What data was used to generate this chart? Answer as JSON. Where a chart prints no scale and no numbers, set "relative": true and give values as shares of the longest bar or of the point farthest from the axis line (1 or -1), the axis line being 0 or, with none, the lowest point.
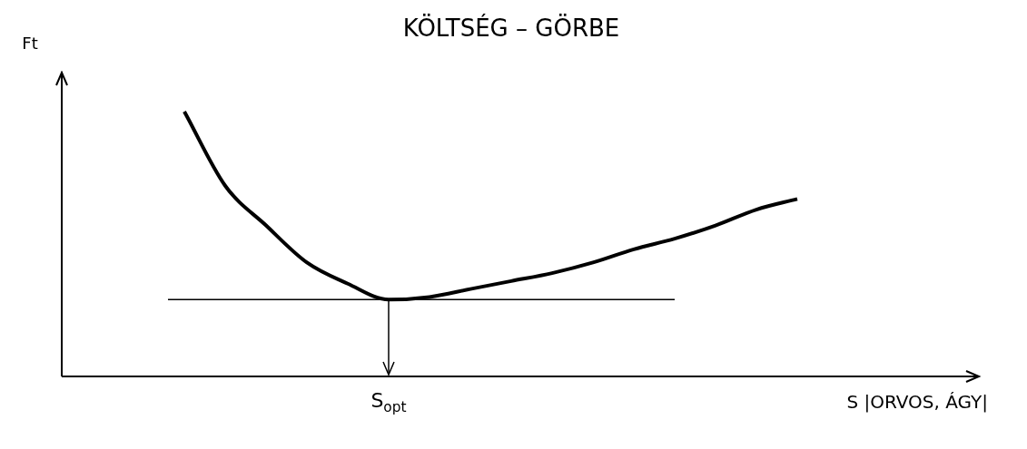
{
  "chart_data": {
    "type": "line",
    "relative": true,
    "title": "KÖLTSÉG – GÖRBE",
    "ylabel": "Ft",
    "xlabel": "S |ORVOS, ÁGY|",
    "categories": [
      null,
      null,
      null,
      null,
      null,
      null,
      null,
      null,
      null,
      null,
      null,
      null,
      null,
      null,
      null,
      null,
      null,
      null,
      null,
      null,
      null,
      null,
      null
    ],
    "values": [
      null,
      null,
      null,
      1,
      0.72,
      0.57,
      0.43,
      0.35,
      0.29,
      0.3,
      0.33,
      0.36,
      0.39,
      0.43,
      0.48,
      0.52,
      0.57,
      0.63,
      0.67,
      null,
      null,
      null,
      null
    ],
    "color": "#000000",
    "ref_lines": [
      {
        "axis": "y",
        "value": 0.29
      }
    ],
    "annotations": [
      "S$_{opt}$"
    ]
  }
}
